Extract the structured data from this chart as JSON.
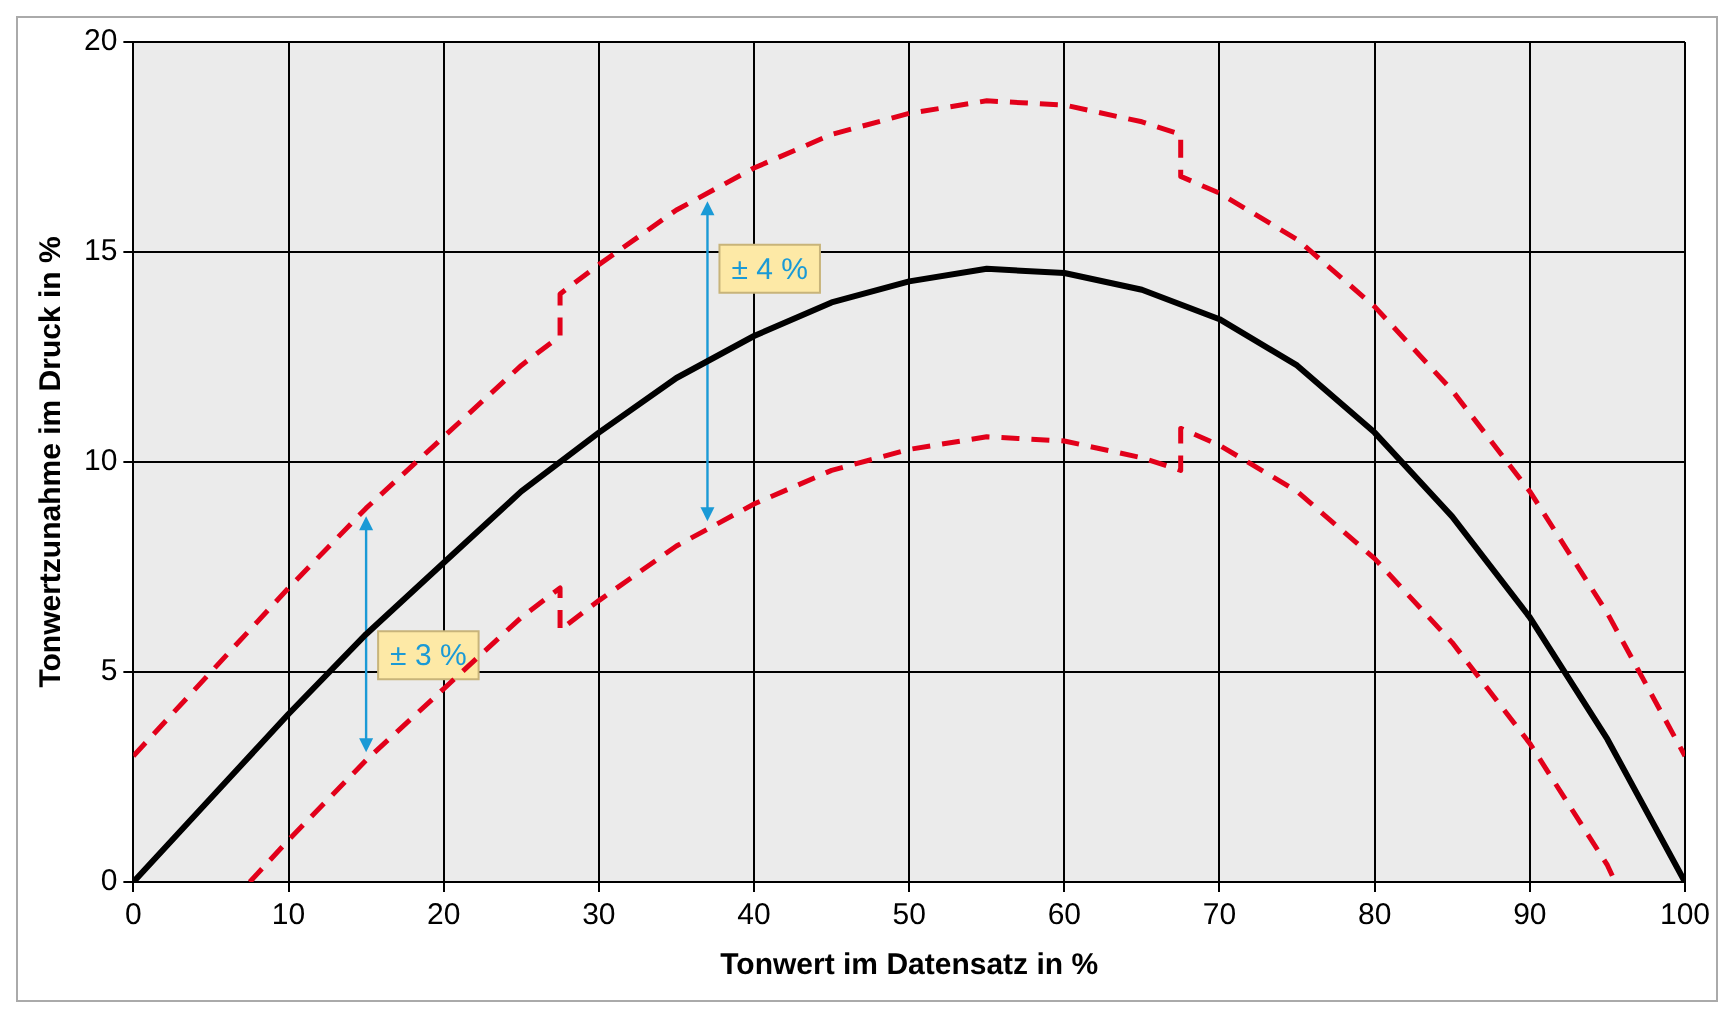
{
  "chart_data": {
    "type": "line",
    "xlabel": "Tonwert im Datensatz in %",
    "ylabel": "Tonwertzunahme im Druck in %",
    "xlim": [
      0,
      100
    ],
    "xticks": [
      0,
      10,
      20,
      30,
      40,
      50,
      60,
      70,
      80,
      90,
      100
    ],
    "ylim": [
      0,
      20
    ],
    "yticks": [
      0,
      5,
      10,
      15,
      20
    ],
    "grid": true,
    "legend": false,
    "marker": "none",
    "series": [
      {
        "color": "#000000",
        "line_style": "solid",
        "x": [
          0,
          5,
          10,
          15,
          20,
          25,
          30,
          35,
          40,
          45,
          50,
          55,
          60,
          65,
          70,
          75,
          80,
          85,
          90,
          95,
          100
        ],
        "values": [
          0,
          2,
          4,
          5.9,
          7.6,
          9.3,
          10.7,
          12,
          13,
          13.8,
          14.3,
          14.6,
          14.5,
          14.1,
          13.4,
          12.3,
          10.7,
          8.7,
          6.3,
          3.4,
          0
        ]
      },
      {
        "color": "#e2001a",
        "line_style": "dashed",
        "x": [
          0,
          5,
          10,
          15,
          20,
          25,
          27.5,
          27.5,
          30,
          35,
          40,
          45,
          50,
          55,
          60,
          65,
          67.5,
          67.5,
          70,
          75,
          80,
          85,
          90,
          95,
          100
        ],
        "values": [
          3,
          5,
          7,
          8.9,
          10.6,
          12.3,
          13,
          14,
          14.7,
          16,
          17,
          17.8,
          18.3,
          18.6,
          18.5,
          18.1,
          17.8,
          16.8,
          16.4,
          15.3,
          13.7,
          11.7,
          9.3,
          6.4,
          3
        ]
      },
      {
        "color": "#e2001a",
        "line_style": "dashed",
        "x": [
          7.5,
          10,
          15,
          20,
          25,
          27.5,
          27.5,
          30,
          35,
          40,
          45,
          50,
          55,
          60,
          65,
          67.5,
          67.5,
          70,
          75,
          80,
          85,
          90,
          95,
          95.5
        ],
        "values": [
          0,
          1,
          2.9,
          4.6,
          6.3,
          7,
          6,
          6.7,
          8,
          9,
          9.8,
          10.3,
          10.6,
          10.5,
          10.1,
          9.8,
          10.8,
          10.4,
          9.3,
          7.7,
          5.7,
          3.3,
          0.4,
          0
        ]
      }
    ],
    "annotations": [
      "± 3 %",
      "± 4 %"
    ]
  }
}
